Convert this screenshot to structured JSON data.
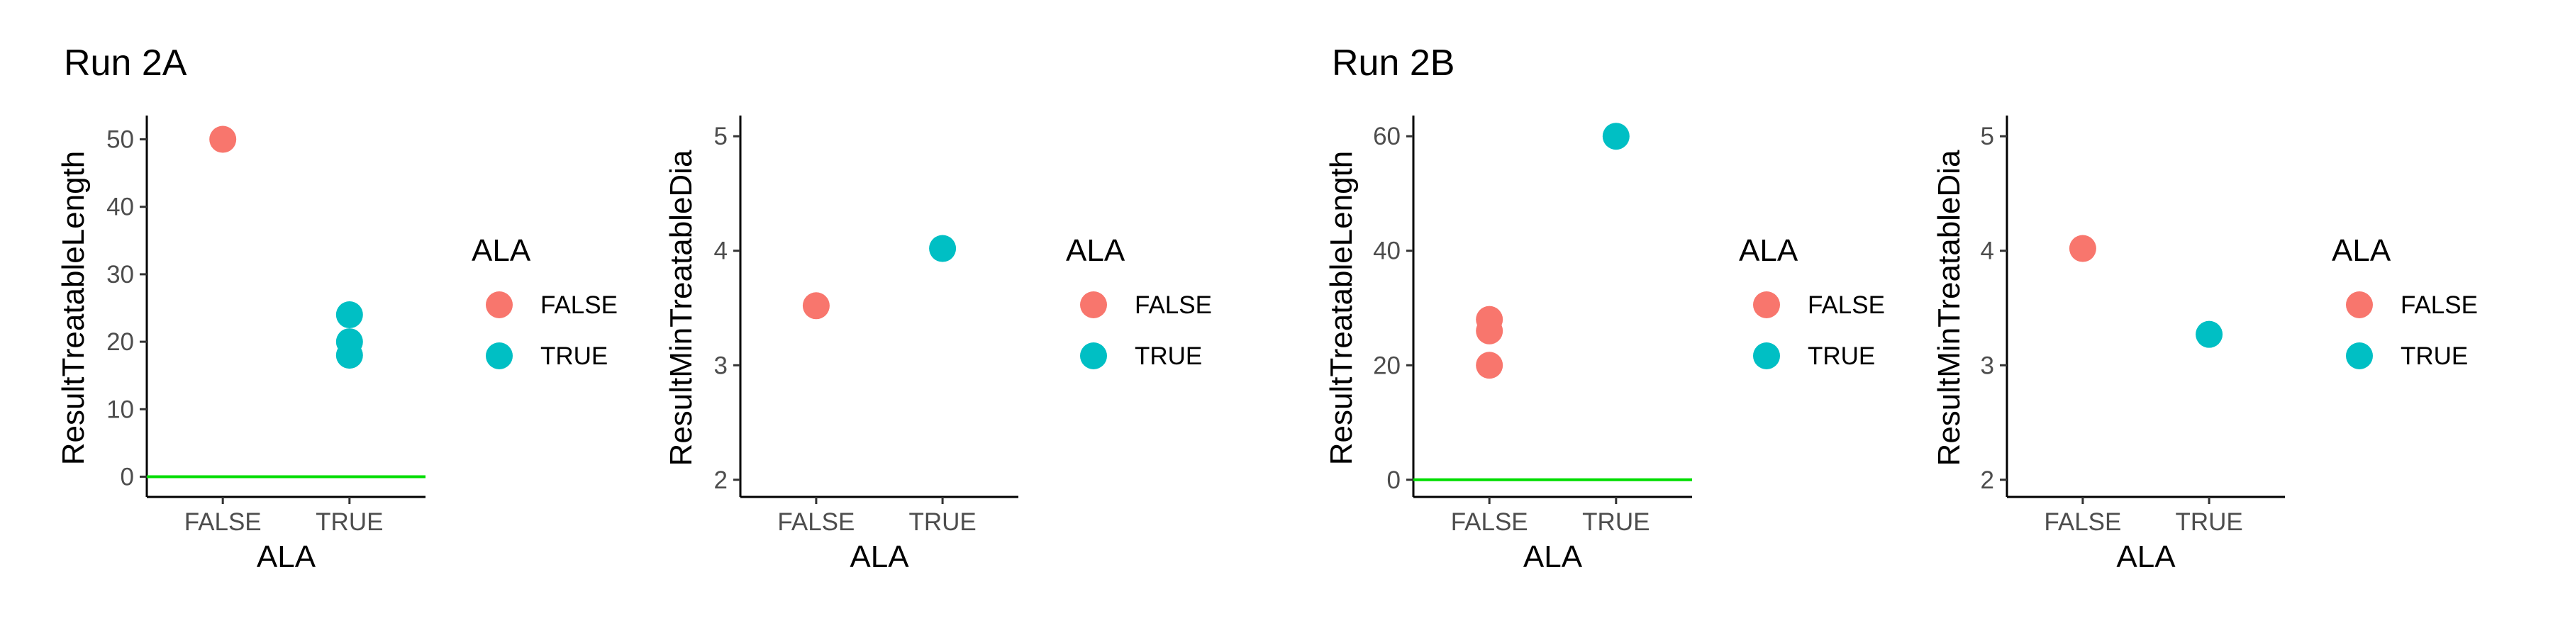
{
  "colors": {
    "FALSE": "#F8766D",
    "TRUE": "#00BFC4",
    "reference_line": "#00DD00"
  },
  "chart_data": [
    {
      "type": "scatter",
      "title": "Run 2A",
      "xlabel": "ALA",
      "ylabel": "ResultTreatableLength",
      "categories": [
        "FALSE",
        "TRUE"
      ],
      "ylim": [
        -3,
        53
      ],
      "yticks": [
        0,
        10,
        20,
        30,
        40,
        50
      ],
      "reference_line": 0,
      "legend": {
        "title": "ALA",
        "entries": [
          "FALSE",
          "TRUE"
        ],
        "placement": "right"
      },
      "points": [
        {
          "x": "FALSE",
          "y": 50
        },
        {
          "x": "TRUE",
          "y": 24
        },
        {
          "x": "TRUE",
          "y": 20
        },
        {
          "x": "TRUE",
          "y": 18
        }
      ]
    },
    {
      "type": "scatter",
      "title": "",
      "xlabel": "ALA",
      "ylabel": "ResultMinTreatableDia",
      "categories": [
        "FALSE",
        "TRUE"
      ],
      "ylim": [
        1.85,
        5.15
      ],
      "yticks": [
        2,
        3,
        4,
        5
      ],
      "legend": {
        "title": "ALA",
        "entries": [
          "FALSE",
          "TRUE"
        ],
        "placement": "right"
      },
      "points": [
        {
          "x": "FALSE",
          "y": 3.52
        },
        {
          "x": "TRUE",
          "y": 4.02
        }
      ]
    },
    {
      "type": "scatter",
      "title": "Run 2B",
      "xlabel": "ALA",
      "ylabel": "ResultTreatableLength",
      "categories": [
        "FALSE",
        "TRUE"
      ],
      "ylim": [
        -3,
        63
      ],
      "yticks": [
        0,
        20,
        40,
        60
      ],
      "reference_line": 0,
      "legend": {
        "title": "ALA",
        "entries": [
          "FALSE",
          "TRUE"
        ],
        "placement": "right"
      },
      "points": [
        {
          "x": "FALSE",
          "y": 28
        },
        {
          "x": "FALSE",
          "y": 26
        },
        {
          "x": "FALSE",
          "y": 20
        },
        {
          "x": "TRUE",
          "y": 60
        }
      ]
    },
    {
      "type": "scatter",
      "title": "",
      "xlabel": "ALA",
      "ylabel": "ResultMinTreatableDia",
      "categories": [
        "FALSE",
        "TRUE"
      ],
      "ylim": [
        1.85,
        5.15
      ],
      "yticks": [
        2,
        3,
        4,
        5
      ],
      "legend": {
        "title": "ALA",
        "entries": [
          "FALSE",
          "TRUE"
        ],
        "placement": "right"
      },
      "points": [
        {
          "x": "FALSE",
          "y": 4.02
        },
        {
          "x": "TRUE",
          "y": 3.27
        }
      ]
    }
  ]
}
